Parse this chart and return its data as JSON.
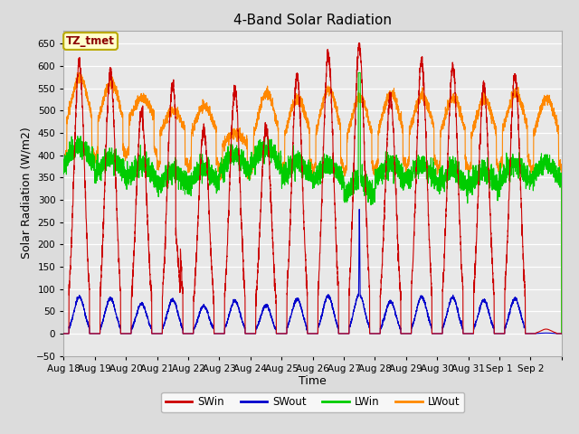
{
  "title": "4-Band Solar Radiation",
  "xlabel": "Time",
  "ylabel": "Solar Radiation (W/m2)",
  "legend_label": "TZ_tmet",
  "series_names": [
    "SWin",
    "SWout",
    "LWin",
    "LWout"
  ],
  "series_colors": [
    "#cc0000",
    "#0000cc",
    "#00cc00",
    "#ff8800"
  ],
  "ylim": [
    -50,
    680
  ],
  "yticks": [
    -50,
    0,
    50,
    100,
    150,
    200,
    250,
    300,
    350,
    400,
    450,
    500,
    550,
    600,
    650
  ],
  "background_color": "#dcdcdc",
  "plot_bg_color": "#e8e8e8",
  "title_fontsize": 11,
  "axis_label_fontsize": 9,
  "tick_fontsize": 7.5,
  "n_days": 16,
  "end_labels": [
    "Aug 18",
    "Aug 19",
    "Aug 20",
    "Aug 21",
    "Aug 22",
    "Aug 23",
    "Aug 24",
    "Aug 25",
    "Aug 26",
    "Aug 27",
    "Aug 28",
    "Aug 29",
    "Aug 30",
    "Aug 31",
    "Sep 1",
    "Sep 2",
    ""
  ]
}
